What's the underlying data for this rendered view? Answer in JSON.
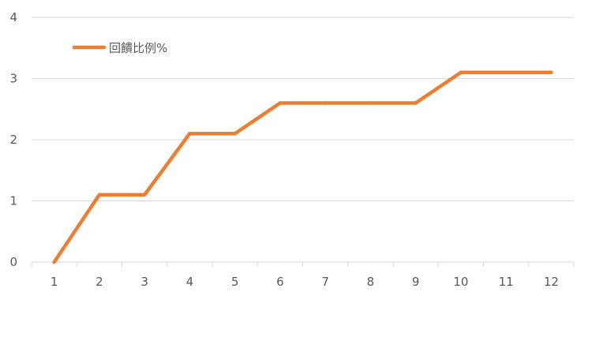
{
  "chart_data": {
    "type": "line",
    "categories": [
      "1",
      "2",
      "3",
      "4",
      "5",
      "6",
      "7",
      "8",
      "9",
      "10",
      "11",
      "12"
    ],
    "series": [
      {
        "name": "回饋比例%",
        "values": [
          0,
          1.1,
          1.1,
          2.1,
          2.1,
          2.6,
          2.6,
          2.6,
          2.6,
          3.1,
          3.1,
          3.1
        ],
        "color": "#ED7D31"
      }
    ],
    "ylim": [
      0,
      4
    ],
    "yticks": [
      "0",
      "1",
      "2",
      "3",
      "4"
    ],
    "grid": true,
    "legend_position": "top-left",
    "title": "",
    "xlabel": "",
    "ylabel": ""
  },
  "colors": {
    "grid": "#D9D9D9",
    "axis": "#D9D9D9",
    "text": "#595959"
  }
}
